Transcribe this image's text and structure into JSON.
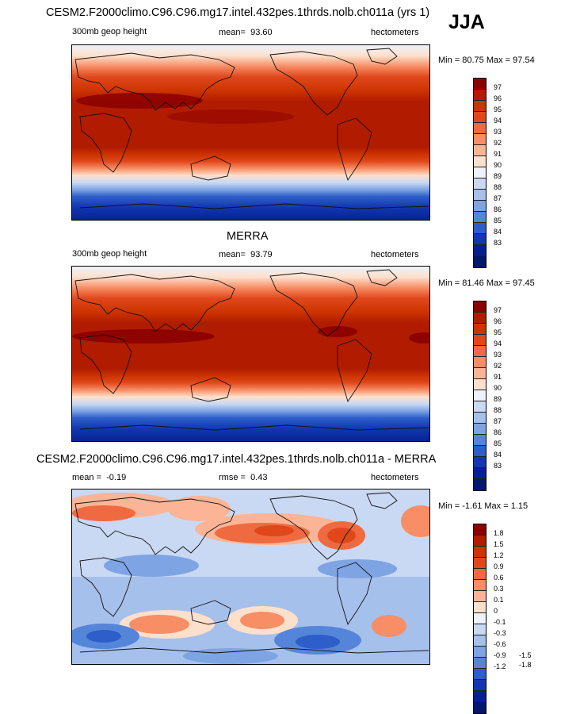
{
  "season": "JJA",
  "panels": [
    {
      "title": "CESM2.F2000climo.C96.C96.mg17.intel.432pes.1thrds.nolb.ch011a (yrs 1)",
      "variable": "300mb geop height",
      "stat_label": "mean=",
      "stat_value": "93.60",
      "units": "hectometers",
      "minmax": "Min =  80.75 Max =  97.54",
      "levels": [
        "97",
        "96",
        "95",
        "94",
        "93",
        "92",
        "91",
        "90",
        "89",
        "88",
        "87",
        "86",
        "85",
        "84",
        "83"
      ]
    },
    {
      "title": "MERRA",
      "variable": "300mb geop height",
      "stat_label": "mean=",
      "stat_value": "93.79",
      "units": "hectometers",
      "minmax": "Min =  81.46 Max =  97.45",
      "levels": [
        "97",
        "96",
        "95",
        "94",
        "93",
        "92",
        "91",
        "90",
        "89",
        "88",
        "87",
        "86",
        "85",
        "84",
        "83"
      ]
    },
    {
      "title": "CESM2.F2000climo.C96.C96.mg17.intel.432pes.1thrds.nolb.ch011a - MERRA",
      "stat_label": "mean =",
      "stat_value": "-0.19",
      "stat2_label": "rmse =",
      "stat2_value": "0.43",
      "units": "hectometers",
      "minmax": "Min =  -1.61 Max =   1.15",
      "levels": [
        "1.8",
        "1.5",
        "1.2",
        "0.9",
        "0.6",
        "0.3",
        "0.1",
        "0",
        "-0.1",
        "-0.3",
        "-0.6",
        "-0.9",
        "-1.2",
        "-1.5",
        "-1.8"
      ]
    }
  ],
  "colors": {
    "scale": [
      "#8b0000",
      "#b11b00",
      "#cc3300",
      "#e0481c",
      "#ef6a41",
      "#f78e66",
      "#fbb596",
      "#fde0cc",
      "#eef2fa",
      "#c9d9f3",
      "#a6c0ec",
      "#7ea4e3",
      "#5585d9",
      "#2d5ec9",
      "#1237b0",
      "#07208f",
      "#03176f"
    ]
  }
}
